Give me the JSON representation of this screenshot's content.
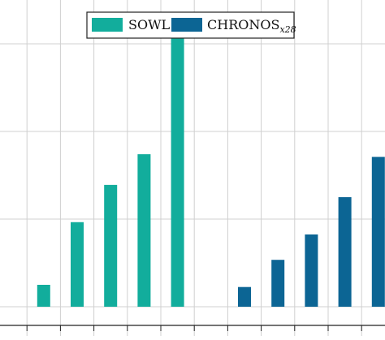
{
  "chart_data": {
    "type": "bar",
    "title": "",
    "xlabel": "",
    "ylabel": "",
    "ylim": [
      0,
      0.62
    ],
    "yticks": [
      0,
      0.2,
      0.4,
      0.6
    ],
    "grid": true,
    "legend_position": "top-center",
    "series": [
      {
        "name": "SOWL",
        "color": "#12ad9c",
        "x": [
          1,
          2,
          3,
          4,
          5
        ],
        "values": [
          0.05,
          0.193,
          0.278,
          0.348,
          0.62
        ]
      },
      {
        "name": "CHRONOS",
        "name_subscript": "x28",
        "color": "#0c6594",
        "x": [
          7,
          8,
          9,
          10,
          11
        ],
        "values": [
          0.045,
          0.107,
          0.165,
          0.25,
          0.342
        ]
      }
    ]
  }
}
